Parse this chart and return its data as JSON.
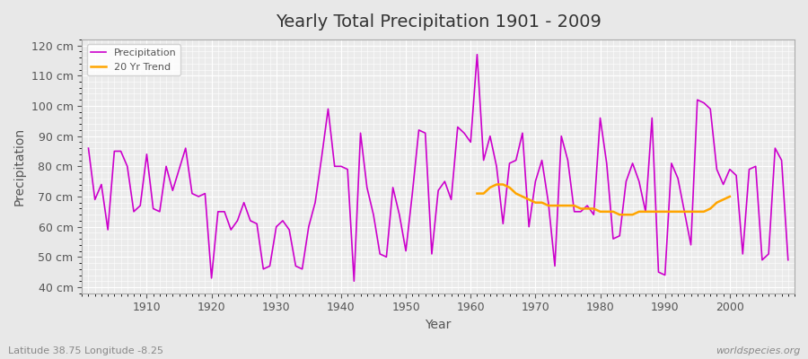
{
  "title": "Yearly Total Precipitation 1901 - 2009",
  "xlabel": "Year",
  "ylabel": "Precipitation",
  "subtitle": "Latitude 38.75 Longitude -8.25",
  "watermark": "worldspecies.org",
  "bg_color": "#e8e8e8",
  "plot_bg_color": "#ebebeb",
  "grid_color": "#ffffff",
  "precip_color": "#cc00cc",
  "trend_color": "#ffa500",
  "ylim": [
    38,
    122
  ],
  "yticks": [
    40,
    50,
    60,
    70,
    80,
    90,
    100,
    110,
    120
  ],
  "ytick_labels": [
    "40 cm",
    "50 cm",
    "60 cm",
    "70 cm",
    "80 cm",
    "90 cm",
    "100 cm",
    "110 cm",
    "120 cm"
  ],
  "years": [
    1901,
    1902,
    1903,
    1904,
    1905,
    1906,
    1907,
    1908,
    1909,
    1910,
    1911,
    1912,
    1913,
    1914,
    1915,
    1916,
    1917,
    1918,
    1919,
    1920,
    1921,
    1922,
    1923,
    1924,
    1925,
    1926,
    1927,
    1928,
    1929,
    1930,
    1931,
    1932,
    1933,
    1934,
    1935,
    1936,
    1937,
    1938,
    1939,
    1940,
    1941,
    1942,
    1943,
    1944,
    1945,
    1946,
    1947,
    1948,
    1949,
    1950,
    1951,
    1952,
    1953,
    1954,
    1955,
    1956,
    1957,
    1958,
    1959,
    1960,
    1961,
    1962,
    1963,
    1964,
    1965,
    1966,
    1967,
    1968,
    1969,
    1970,
    1971,
    1972,
    1973,
    1974,
    1975,
    1976,
    1977,
    1978,
    1979,
    1980,
    1981,
    1982,
    1983,
    1984,
    1985,
    1986,
    1987,
    1988,
    1989,
    1990,
    1991,
    1992,
    1993,
    1994,
    1995,
    1996,
    1997,
    1998,
    1999,
    2000,
    2001,
    2002,
    2003,
    2004,
    2005,
    2006,
    2007,
    2008,
    2009
  ],
  "precip": [
    86,
    69,
    74,
    59,
    85,
    85,
    80,
    65,
    67,
    84,
    66,
    65,
    80,
    72,
    79,
    86,
    71,
    70,
    71,
    43,
    65,
    65,
    59,
    62,
    68,
    62,
    61,
    46,
    47,
    60,
    62,
    59,
    47,
    46,
    60,
    68,
    83,
    99,
    80,
    80,
    79,
    42,
    91,
    73,
    64,
    51,
    50,
    73,
    64,
    52,
    71,
    92,
    91,
    51,
    72,
    75,
    69,
    93,
    91,
    88,
    117,
    82,
    90,
    80,
    61,
    81,
    82,
    91,
    60,
    75,
    82,
    68,
    47,
    90,
    82,
    65,
    65,
    67,
    64,
    96,
    81,
    56,
    57,
    75,
    81,
    75,
    65,
    96,
    45,
    44,
    81,
    76,
    65,
    54,
    102,
    101,
    99,
    79,
    74,
    79,
    77,
    51,
    79,
    80,
    49,
    51,
    86,
    82,
    49
  ],
  "trend_years": [
    1961,
    1962,
    1963,
    1964,
    1965,
    1966,
    1967,
    1968,
    1969,
    1970,
    1971,
    1972,
    1973,
    1974,
    1975,
    1976,
    1977,
    1978,
    1979,
    1980,
    1981,
    1982,
    1983,
    1984,
    1985,
    1986,
    1987,
    1988,
    1989,
    1990,
    1991,
    1992,
    1993,
    1994,
    1995,
    1996,
    1997,
    1998,
    1999,
    2000
  ],
  "trend": [
    71,
    71,
    73,
    74,
    74,
    73,
    71,
    70,
    69,
    68,
    68,
    67,
    67,
    67,
    67,
    67,
    66,
    66,
    66,
    65,
    65,
    65,
    64,
    64,
    64,
    65,
    65,
    65,
    65,
    65,
    65,
    65,
    65,
    65,
    65,
    65,
    66,
    68,
    69,
    70
  ]
}
